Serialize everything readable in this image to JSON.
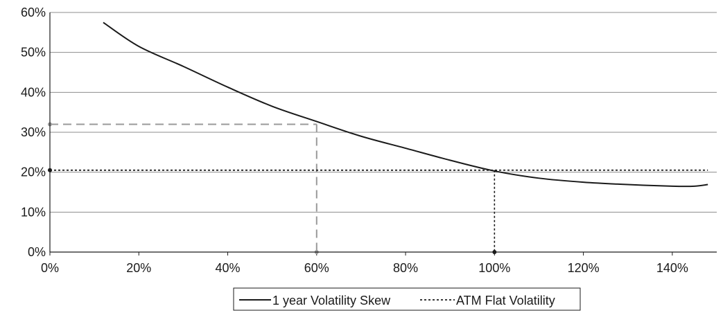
{
  "chart_data": {
    "type": "line",
    "title": "",
    "xlabel": "",
    "ylabel": "",
    "xlim": [
      0,
      150
    ],
    "ylim": [
      0,
      60
    ],
    "x_ticks": [
      "0%",
      "20%",
      "40%",
      "60%",
      "80%",
      "100%",
      "120%",
      "140%"
    ],
    "y_ticks": [
      "0%",
      "10%",
      "20%",
      "30%",
      "40%",
      "50%",
      "60%"
    ],
    "grid": true,
    "legend_position": "bottom",
    "series": [
      {
        "name": "1 year Volatility Skew",
        "style": "solid",
        "color": "#1a1a1a",
        "x": [
          12,
          20,
          30,
          40,
          50,
          60,
          70,
          80,
          90,
          100,
          110,
          120,
          130,
          140,
          145,
          148
        ],
        "y": [
          57.5,
          51.5,
          46.5,
          41.3,
          36.5,
          32.7,
          29.0,
          26.0,
          23.0,
          20.3,
          18.5,
          17.5,
          16.9,
          16.5,
          16.5,
          16.9
        ]
      },
      {
        "name": "ATM Flat Volatility",
        "style": "dotted",
        "color": "#1a1a1a",
        "x": [
          0,
          148
        ],
        "y": [
          20.5,
          20.5
        ]
      }
    ],
    "guides": [
      {
        "x": 60,
        "y": 32,
        "color": "#999999",
        "style": "dashed"
      },
      {
        "x": 100,
        "y": 20.5,
        "color": "#1a1a1a",
        "style": "dotted"
      }
    ]
  }
}
